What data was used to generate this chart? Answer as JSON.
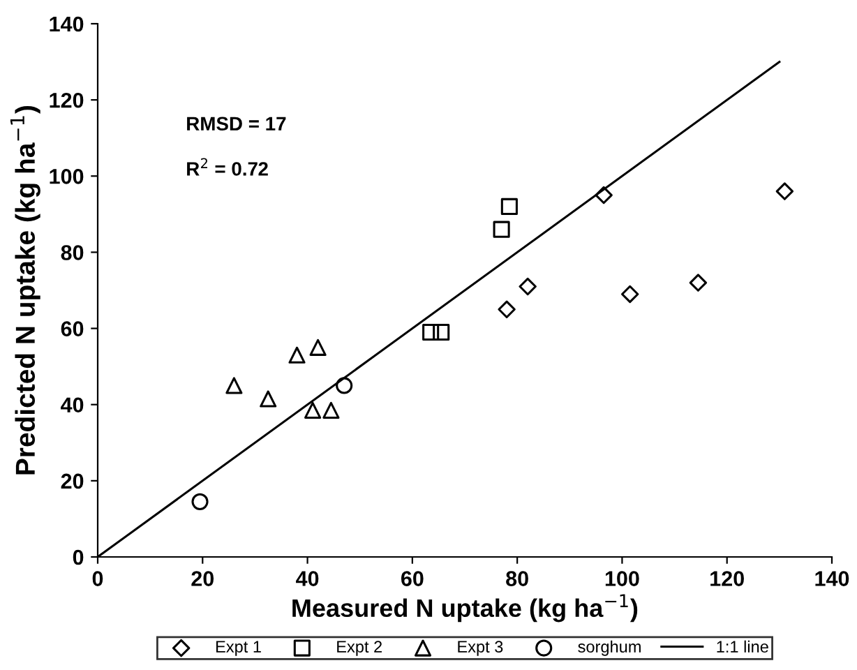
{
  "chart_data": {
    "type": "scatter",
    "xlabel": "Measured N uptake (kg ha$^{−1}$)",
    "ylabel": "Predicted N uptake (kg ha$^{−1}$)",
    "xlim": [
      0,
      140
    ],
    "ylim": [
      0,
      140
    ],
    "xticks": [
      0,
      20,
      40,
      60,
      80,
      100,
      120,
      140
    ],
    "yticks": [
      0,
      20,
      40,
      60,
      80,
      100,
      120,
      140
    ],
    "grid": false,
    "legend": "bottom",
    "annotations": [
      "RMSD = 17",
      "R$^{2}$ = 0.72"
    ],
    "series": [
      {
        "name": "Expt 1",
        "marker": "diamond",
        "color": "#000000",
        "x": [
          78,
          82,
          96.5,
          101.5,
          114.5,
          131
        ],
        "values": [
          65,
          71,
          95,
          69,
          72,
          96
        ]
      },
      {
        "name": "Expt 2",
        "marker": "square",
        "color": "#000000",
        "x": [
          63.5,
          65.5,
          77,
          78.5
        ],
        "values": [
          59,
          59,
          86,
          92
        ]
      },
      {
        "name": "Expt 3",
        "marker": "triangle",
        "color": "#000000",
        "x": [
          26,
          32.5,
          38,
          41,
          42,
          44.5
        ],
        "values": [
          45,
          41.5,
          53,
          38.5,
          55,
          38.5
        ]
      },
      {
        "name": "sorghum",
        "marker": "circle",
        "color": "#000000",
        "x": [
          19.5,
          47
        ],
        "values": [
          14.5,
          45
        ]
      },
      {
        "name": "1:1 line",
        "type": "line",
        "marker": "none",
        "line_style": "solid",
        "color": "#000000",
        "x": [
          0,
          130
        ],
        "values": [
          0,
          130
        ]
      }
    ]
  }
}
